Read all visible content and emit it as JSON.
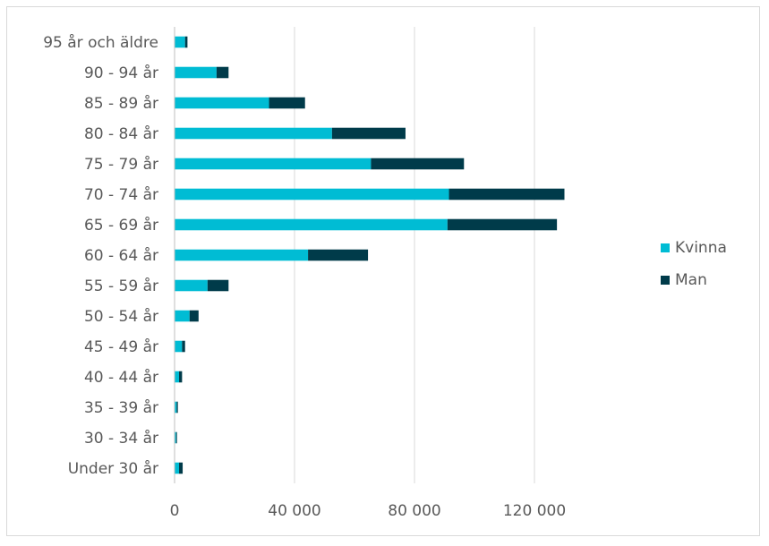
{
  "chart_data": {
    "type": "bar",
    "orientation": "horizontal",
    "stacked": true,
    "categories": [
      "95 år och äldre",
      "90 - 94 år",
      "85 - 89 år",
      "80 - 84 år",
      "75 - 79 år",
      "70 - 74 år",
      "65 - 69 år",
      "60 - 64 år",
      "55 - 59 år",
      "50 - 54 år",
      "45 - 49 år",
      "40 - 44 år",
      "35 - 39 år",
      "30 - 34 år",
      "Under 30 år"
    ],
    "series": [
      {
        "name": "Kvinna",
        "color": "#00BCD4",
        "values": [
          3500,
          14000,
          31500,
          52500,
          65500,
          91500,
          91000,
          44500,
          11000,
          5000,
          2500,
          1500,
          700,
          500,
          1500
        ]
      },
      {
        "name": "Man",
        "color": "#003B4A",
        "values": [
          800,
          4000,
          12000,
          24500,
          31000,
          38500,
          36500,
          20000,
          7000,
          3000,
          1000,
          1000,
          400,
          300,
          1200
        ]
      }
    ],
    "xlim": [
      0,
      150000
    ],
    "xticks": [
      0,
      40000,
      80000,
      120000
    ],
    "xtick_labels": [
      "0",
      "40 000",
      "80 000",
      "120 000"
    ],
    "grid": true,
    "legend": "right"
  }
}
